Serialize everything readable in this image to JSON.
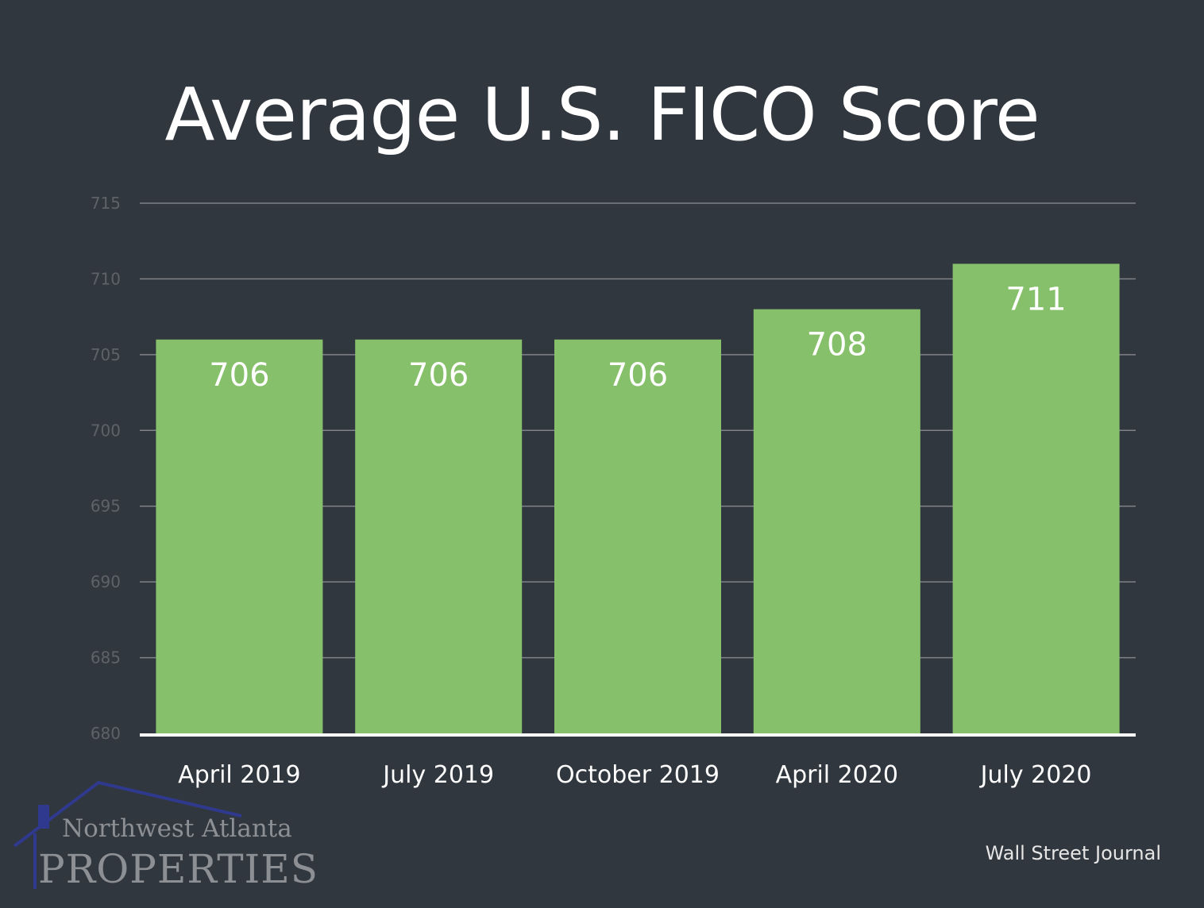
{
  "title": "Average U.S. FICO Score",
  "source": "Wall Street Journal",
  "logo": {
    "line1": "Northwest Atlanta",
    "line2": "PROPERTIES",
    "roof_color": "#2f3a8f"
  },
  "colors": {
    "background": "#31373e",
    "bar": "#87c06a",
    "gridline": "#7f8287",
    "baseline": "#ffffff",
    "tick_label": "#5e6268",
    "category_label": "#ffffff",
    "data_label": "#ffffff"
  },
  "chart_data": {
    "type": "bar",
    "title": "Average U.S. FICO Score",
    "categories": [
      "April 2019",
      "July 2019",
      "October 2019",
      "April 2020",
      "July 2020"
    ],
    "values": [
      706,
      706,
      706,
      708,
      711
    ],
    "data_labels": [
      "706",
      "706",
      "706",
      "708",
      "711"
    ],
    "ylim": [
      680,
      715
    ],
    "yticks": [
      680,
      685,
      690,
      695,
      700,
      705,
      710,
      715
    ],
    "xlabel": "",
    "ylabel": "",
    "grid": true,
    "legend": "none"
  }
}
